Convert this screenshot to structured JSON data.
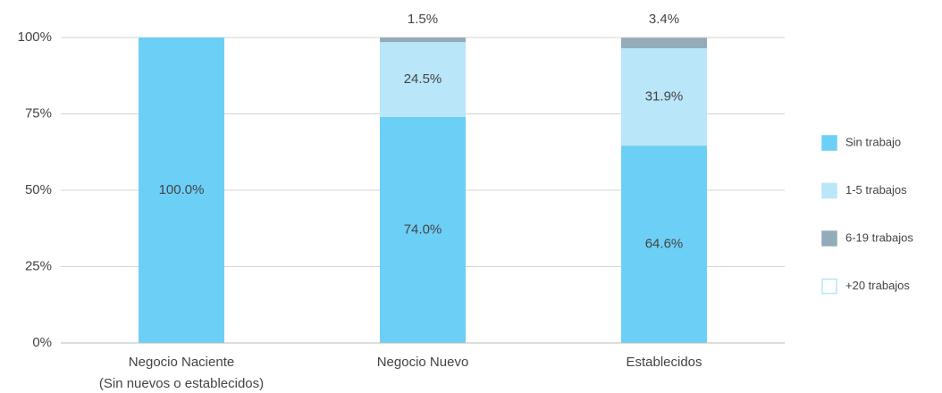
{
  "chart_data": {
    "type": "stacked_bar",
    "categories": [
      "Negocio Naciente\n(Sin nuevos o establecidos)",
      "Negocio Nuevo",
      "Establecidos"
    ],
    "series": [
      {
        "name": "Sin trabajo",
        "color": "#6ccff6",
        "values": [
          100.0,
          74.0,
          64.6
        ],
        "value_labels": [
          "100.0%",
          "74.0%",
          "64.6%"
        ]
      },
      {
        "name": "1-5 trabajos",
        "color": "#b9e6f8",
        "values": [
          0,
          24.5,
          31.9
        ],
        "value_labels": [
          null,
          "24.5%",
          "31.9%"
        ]
      },
      {
        "name": "6-19 trabajos",
        "color": "#94abb9",
        "values": [
          0,
          1.5,
          3.4
        ],
        "value_labels": [
          null,
          "1.5%",
          "3.4%"
        ]
      },
      {
        "name": "+20 trabajos",
        "color": "#ffffff",
        "values": [
          0,
          0,
          0
        ],
        "value_labels": [
          null,
          null,
          null
        ]
      }
    ],
    "ylim": [
      0,
      100
    ],
    "yticks": [
      {
        "value": 0,
        "label": "0%"
      },
      {
        "value": 25,
        "label": "25%"
      },
      {
        "value": 50,
        "label": "50%"
      },
      {
        "value": 75,
        "label": "75%"
      },
      {
        "value": 100,
        "label": "100%"
      }
    ],
    "grid": true,
    "legend": "right"
  }
}
